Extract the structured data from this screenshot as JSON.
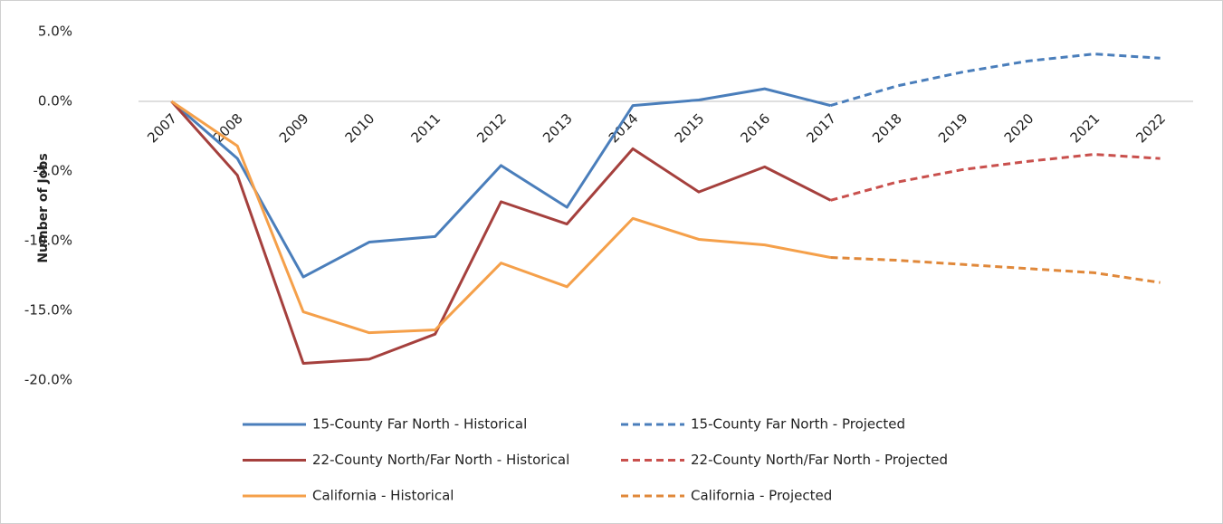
{
  "chart_data": {
    "type": "line",
    "y_label": "Number of Jobs",
    "categories": [
      "2007",
      "2008",
      "2009",
      "2010",
      "2011",
      "2012",
      "2013",
      "2014",
      "2015",
      "2016",
      "2017",
      "2018",
      "2019",
      "2020",
      "2021",
      "2022"
    ],
    "ylim": [
      -20,
      5
    ],
    "yticks": [
      {
        "value": 5,
        "label": "5.0%"
      },
      {
        "value": 0,
        "label": "0.0%"
      },
      {
        "value": -5,
        "label": "-5.0%"
      },
      {
        "value": -10,
        "label": "-10.0%"
      },
      {
        "value": -15,
        "label": "-15.0%"
      },
      {
        "value": -20,
        "label": "-20.0%"
      }
    ],
    "grid": false,
    "legend": "bottom",
    "series": [
      {
        "name": "15-County Far North - Historical",
        "color": "#4a7ebb",
        "line_style": "solid",
        "values": [
          0,
          -4.1,
          -12.6,
          -10.1,
          -9.7,
          -4.6,
          -7.6,
          -0.3,
          0.1,
          0.9,
          -0.3,
          null,
          null,
          null,
          null,
          null
        ]
      },
      {
        "name": "15-County Far North - Projected",
        "color": "#4a7ebb",
        "line_style": "dashed",
        "values": [
          null,
          null,
          null,
          null,
          null,
          null,
          null,
          null,
          null,
          null,
          -0.3,
          1.1,
          2.1,
          2.9,
          3.4,
          3.1
        ]
      },
      {
        "name": "22-County North/Far North - Historical",
        "color": "#a5403d",
        "line_style": "solid",
        "values": [
          0,
          -5.3,
          -18.8,
          -18.5,
          -16.7,
          -7.2,
          -8.8,
          -3.4,
          -6.5,
          -4.7,
          -7.1,
          null,
          null,
          null,
          null,
          null
        ]
      },
      {
        "name": "22-County North/Far North - Projected",
        "color": "#c9504d",
        "line_style": "dashed",
        "values": [
          null,
          null,
          null,
          null,
          null,
          null,
          null,
          null,
          null,
          null,
          -7.1,
          -5.8,
          -4.9,
          -4.3,
          -3.8,
          -4.1
        ]
      },
      {
        "name": "California - Historical",
        "color": "#f5a04a",
        "line_style": "solid",
        "values": [
          0,
          -3.2,
          -15.1,
          -16.6,
          -16.4,
          -11.6,
          -13.3,
          -8.4,
          -9.9,
          -10.3,
          -11.2,
          null,
          null,
          null,
          null,
          null
        ]
      },
      {
        "name": "California - Projected",
        "color": "#e0883a",
        "line_style": "dashed",
        "values": [
          null,
          null,
          null,
          null,
          null,
          null,
          null,
          null,
          null,
          null,
          -11.2,
          -11.4,
          -11.7,
          -12.0,
          -12.3,
          -13.0
        ]
      }
    ]
  }
}
